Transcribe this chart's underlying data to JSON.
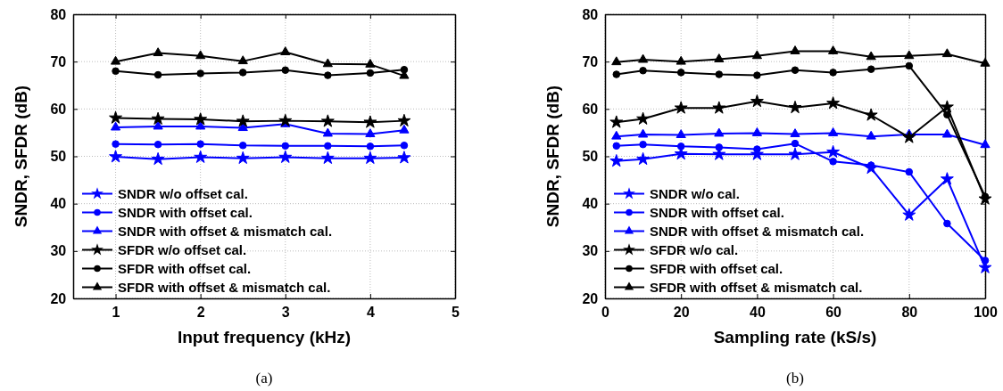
{
  "chart_data": [
    {
      "type": "line",
      "xlabel": "Input frequency (kHz)",
      "ylabel": "SNDR, SFDR (dB)",
      "annotations": [
        "(a)"
      ],
      "x": [
        1.0,
        1.5,
        2.0,
        2.5,
        3.0,
        3.5,
        4.0,
        4.4
      ],
      "xlim": [
        0.5,
        5
      ],
      "xticks": [
        1,
        2,
        3,
        4,
        5
      ],
      "ylim": [
        20,
        80
      ],
      "yticks": [
        20,
        30,
        40,
        50,
        60,
        70,
        80
      ],
      "grid": true,
      "legend": "bottom left",
      "series": [
        {
          "name": "SNDR w/o offset cal.",
          "color": "#0000ff",
          "marker": "star",
          "values": [
            49.9,
            49.4,
            49.8,
            49.6,
            49.8,
            49.6,
            49.6,
            49.7
          ]
        },
        {
          "name": "SNDR with offset cal.",
          "color": "#0000ff",
          "marker": "circle",
          "values": [
            52.6,
            52.5,
            52.6,
            52.3,
            52.2,
            52.2,
            52.1,
            52.3
          ]
        },
        {
          "name": "SNDR with offset & mismatch cal.",
          "color": "#0000ff",
          "marker": "triangle",
          "values": [
            56.1,
            56.3,
            56.3,
            56.0,
            56.8,
            54.8,
            54.7,
            55.5
          ]
        },
        {
          "name": "SFDR w/o offset cal.",
          "color": "#000000",
          "marker": "star",
          "values": [
            58.1,
            57.9,
            57.8,
            57.4,
            57.5,
            57.4,
            57.2,
            57.5
          ]
        },
        {
          "name": "SFDR with offset cal.",
          "color": "#000000",
          "marker": "circle",
          "values": [
            68.0,
            67.2,
            67.5,
            67.7,
            68.2,
            67.1,
            67.6,
            68.3
          ]
        },
        {
          "name": "SFDR with offset & mismatch cal.",
          "color": "#000000",
          "marker": "triangle",
          "values": [
            70.0,
            71.8,
            71.2,
            70.1,
            72.0,
            69.5,
            69.4,
            67.0
          ]
        }
      ]
    },
    {
      "type": "line",
      "xlabel": "Sampling rate (kS/s)",
      "ylabel": "SNDR, SFDR (dB)",
      "annotations": [
        "(b)"
      ],
      "x": [
        3,
        10,
        20,
        30,
        40,
        50,
        60,
        70,
        80,
        90,
        100
      ],
      "xlim": [
        0,
        100
      ],
      "xticks": [
        0,
        20,
        40,
        60,
        80,
        100
      ],
      "ylim": [
        20,
        80
      ],
      "yticks": [
        20,
        30,
        40,
        50,
        60,
        70,
        80
      ],
      "grid": true,
      "legend": "bottom left",
      "series": [
        {
          "name": "SNDR w/o cal.",
          "color": "#0000ff",
          "marker": "star",
          "values": [
            49.0,
            49.4,
            50.5,
            50.4,
            50.4,
            50.4,
            50.9,
            47.5,
            37.6,
            45.2,
            26.5
          ]
        },
        {
          "name": "SNDR with offset cal.",
          "color": "#0000ff",
          "marker": "circle",
          "values": [
            52.2,
            52.5,
            52.1,
            51.9,
            51.5,
            52.7,
            48.9,
            48.1,
            46.7,
            35.8,
            28.0
          ]
        },
        {
          "name": "SNDR with offset & mismatch cal.",
          "color": "#0000ff",
          "marker": "triangle",
          "values": [
            54.2,
            54.6,
            54.5,
            54.8,
            54.9,
            54.7,
            54.9,
            54.2,
            54.6,
            54.6,
            52.4
          ]
        },
        {
          "name": "SFDR w/o cal.",
          "color": "#000000",
          "marker": "star",
          "values": [
            57.2,
            57.9,
            60.2,
            60.2,
            61.6,
            60.3,
            61.2,
            58.7,
            54.0,
            60.4,
            41.0
          ]
        },
        {
          "name": "SFDR with offset cal.",
          "color": "#000000",
          "marker": "circle",
          "values": [
            67.3,
            68.1,
            67.7,
            67.3,
            67.1,
            68.2,
            67.7,
            68.4,
            69.1,
            58.8,
            41.5
          ]
        },
        {
          "name": "SFDR with offset & mismatch cal.",
          "color": "#000000",
          "marker": "triangle",
          "values": [
            69.9,
            70.4,
            70.0,
            70.5,
            71.2,
            72.2,
            72.2,
            71.0,
            71.2,
            71.6,
            69.6
          ]
        }
      ]
    }
  ]
}
